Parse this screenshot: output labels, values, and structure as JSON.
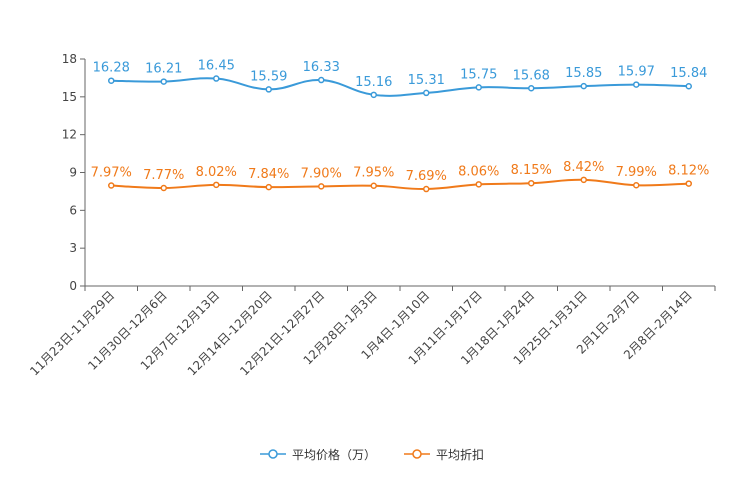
{
  "chart_data": {
    "type": "line",
    "categories": [
      "11月23日-11月29日",
      "11月30日-12月6日",
      "12月7日-12月13日",
      "12月14日-12月20日",
      "12月21日-12月27日",
      "12月28日-1月3日",
      "1月4日-1月10日",
      "1月11日-1月17日",
      "1月18日-1月24日",
      "1月25日-1月31日",
      "2月1日-2月7日",
      "2月8日-2月14日"
    ],
    "series": [
      {
        "name": "平均价格（万）",
        "color": "#3a9ad9",
        "values": [
          16.28,
          16.21,
          16.45,
          15.59,
          16.33,
          15.16,
          15.31,
          15.75,
          15.68,
          15.85,
          15.97,
          15.84
        ],
        "labels": [
          "16.28",
          "16.21",
          "16.45",
          "15.59",
          "16.33",
          "15.16",
          "15.31",
          "15.75",
          "15.68",
          "15.85",
          "15.97",
          "15.84"
        ]
      },
      {
        "name": "平均折扣",
        "color": "#f07a1a",
        "values": [
          7.97,
          7.77,
          8.02,
          7.84,
          7.9,
          7.95,
          7.69,
          8.06,
          8.15,
          8.42,
          7.99,
          8.12
        ],
        "labels": [
          "7.97%",
          "7.77%",
          "8.02%",
          "7.84%",
          "7.90%",
          "7.95%",
          "7.69%",
          "8.06%",
          "8.15%",
          "8.42%",
          "7.99%",
          "8.12%"
        ]
      }
    ],
    "ylim": [
      0,
      18
    ],
    "yticks": [
      0,
      3,
      6,
      9,
      12,
      15,
      18
    ],
    "ytick_labels": [
      "0",
      "3",
      "6",
      "9",
      "12",
      "15",
      "18"
    ],
    "title": "",
    "xlabel": "",
    "ylabel": "",
    "legend_position": "bottom-center",
    "grid": false
  }
}
